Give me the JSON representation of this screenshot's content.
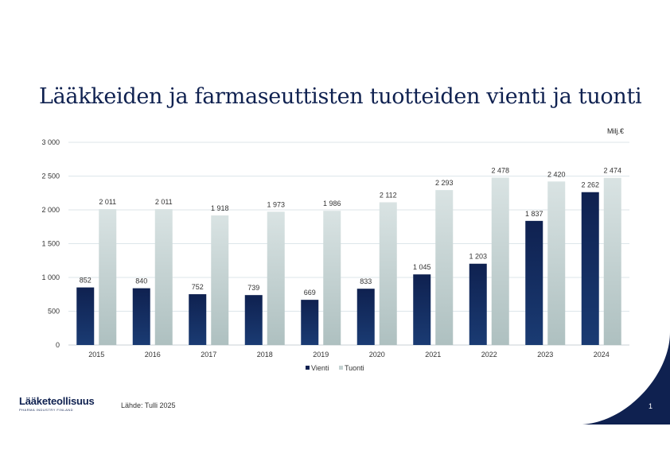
{
  "page": {
    "title": "Lääkkeiden ja farmaseuttisten tuotteiden vienti ja tuonti",
    "unit": "Milj.€",
    "source": "Lähde: Tulli 2025",
    "page_number": "1",
    "logo_text": "Lääketeollisuus",
    "logo_tagline": "PHARMA INDUSTRY FINLAND",
    "colors": {
      "title": "#0f2150",
      "vienti_top": "#0f2150",
      "vienti_bottom": "#1a3b73",
      "tuonti_top": "#d9e3e3",
      "tuonti_bottom": "#aec0c0",
      "corner": "#0f2150"
    }
  },
  "chart_data": {
    "type": "bar",
    "categories": [
      "2015",
      "2016",
      "2017",
      "2018",
      "2019",
      "2020",
      "2021",
      "2022",
      "2023",
      "2024"
    ],
    "series": [
      {
        "name": "Vienti",
        "values": [
          852,
          840,
          752,
          739,
          669,
          833,
          1045,
          1203,
          1837,
          2262
        ],
        "labels": [
          "852",
          "840",
          "752",
          "739",
          "669",
          "833",
          "1 045",
          "1 203",
          "1 837",
          "2 262"
        ]
      },
      {
        "name": "Tuonti",
        "values": [
          2011,
          2011,
          1918,
          1973,
          1986,
          2112,
          2293,
          2478,
          2420,
          2474
        ],
        "labels": [
          "2 011",
          "2 011",
          "1 918",
          "1 973",
          "1 986",
          "2 112",
          "2 293",
          "2 478",
          "2 420",
          "2 474"
        ]
      }
    ],
    "ylim": [
      0,
      3000
    ],
    "yticks": [
      0,
      500,
      1000,
      1500,
      2000,
      2500,
      3000
    ],
    "ytick_labels": [
      "0",
      "500",
      "1 000",
      "1 500",
      "2 000",
      "2 500",
      "3 000"
    ],
    "grid": true,
    "legend": "bottom-center"
  }
}
